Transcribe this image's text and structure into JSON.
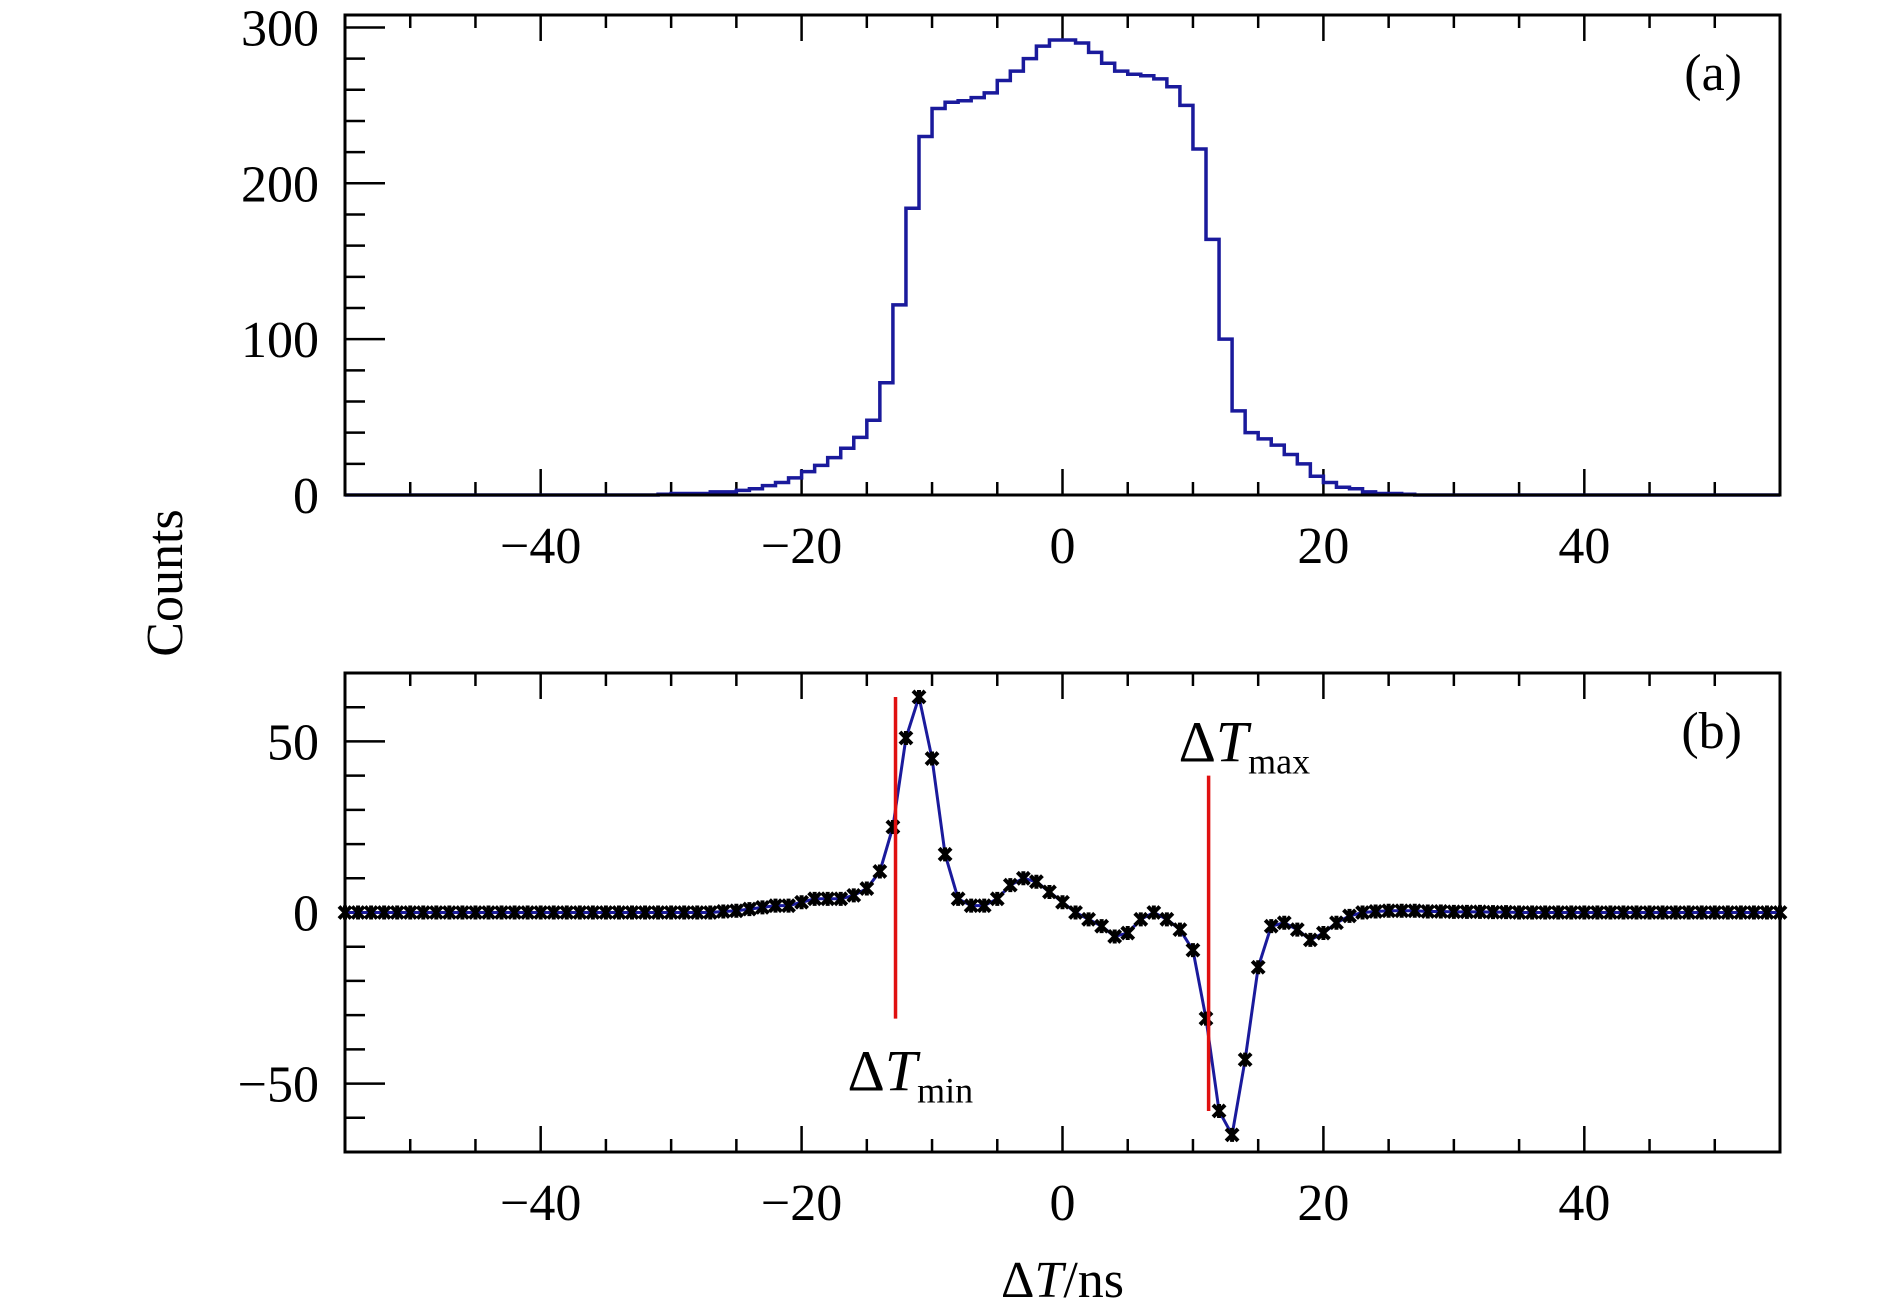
{
  "figure": {
    "ylabel": "Counts"
  },
  "colors": {
    "histogram": "#1a1a9c",
    "fit_curve": "#1a1a9c",
    "markers": "#000000",
    "marker_lines": "#e01010",
    "axes": "#000000"
  },
  "chart_data": [
    {
      "type": "bar",
      "style": "step-histogram",
      "panel_label": "(a)",
      "xlabel": "",
      "ylabel": "Counts",
      "xlim": [
        -55,
        55
      ],
      "ylim": [
        0,
        308
      ],
      "x_ticks": [
        -40,
        -20,
        0,
        20,
        40
      ],
      "x_tick_labels": [
        "−40",
        "−20",
        "0",
        "20",
        "40"
      ],
      "y_ticks": [
        0,
        100,
        200,
        300
      ],
      "y_tick_labels": [
        "0",
        "100",
        "200",
        "300"
      ],
      "bin_width": 1,
      "bin_start": -55,
      "values": [
        0,
        0,
        0,
        0,
        0,
        0,
        0,
        0,
        0,
        0,
        0,
        0,
        0,
        0,
        0,
        0,
        0,
        0,
        0,
        0,
        0,
        0,
        0,
        0,
        0.5,
        1,
        1,
        1,
        2,
        2,
        3,
        4,
        6,
        8,
        11,
        15,
        19,
        24,
        30,
        37,
        48,
        72,
        122,
        184,
        230,
        248,
        252,
        253,
        255,
        258,
        266,
        272,
        280,
        288,
        292,
        292,
        290,
        284,
        277,
        272,
        270,
        269,
        267,
        262,
        250,
        222,
        164,
        100,
        54,
        40,
        36,
        32,
        26,
        20,
        12,
        8,
        5,
        4,
        2,
        1,
        1,
        0.5,
        0,
        0,
        0,
        0,
        0,
        0,
        0,
        0,
        0,
        0,
        0,
        0,
        0,
        0,
        0,
        0,
        0,
        0,
        0,
        0,
        0,
        0,
        0,
        0,
        0,
        0,
        0,
        0
      ],
      "grid": false,
      "legend": "none"
    },
    {
      "type": "line",
      "style": "markers-with-fit",
      "panel_label": "(b)",
      "xlabel": "ΔT/ns",
      "ylabel": "Counts",
      "xlim": [
        -55,
        55
      ],
      "ylim": [
        -70,
        70
      ],
      "x_ticks": [
        -40,
        -20,
        0,
        20,
        40
      ],
      "x_tick_labels": [
        "−40",
        "−20",
        "0",
        "20",
        "40"
      ],
      "y_ticks": [
        -50,
        0,
        50
      ],
      "y_tick_labels": [
        "−50",
        "0",
        "50"
      ],
      "series": [
        {
          "x": [
            -55,
            -54,
            -53,
            -52,
            -51,
            -50,
            -49,
            -48,
            -47,
            -46,
            -45,
            -44,
            -43,
            -42,
            -41,
            -40,
            -39,
            -38,
            -37,
            -36,
            -35,
            -34,
            -33,
            -32,
            -31,
            -30,
            -29,
            -28,
            -27,
            -26,
            -25,
            -24,
            -23,
            -22,
            -21,
            -20,
            -19,
            -18,
            -17,
            -16,
            -15,
            -14,
            -13,
            -12,
            -11,
            -10,
            -9,
            -8,
            -7,
            -6,
            -5,
            -4,
            -3,
            -2,
            -1,
            0,
            1,
            2,
            3,
            4,
            5,
            6,
            7,
            8,
            9,
            10,
            11,
            12,
            13,
            14,
            15,
            16,
            17,
            18,
            19,
            20,
            21,
            22,
            23,
            24,
            25,
            26,
            27,
            28,
            29,
            30,
            31,
            32,
            33,
            34,
            35,
            36,
            37,
            38,
            39,
            40,
            41,
            42,
            43,
            44,
            45,
            46,
            47,
            48,
            49,
            50,
            51,
            52,
            53,
            54,
            55
          ],
          "y": [
            0,
            0,
            0,
            0,
            0,
            0,
            0,
            0,
            0,
            0,
            0,
            0,
            0,
            0,
            0,
            0,
            0,
            0,
            0,
            0,
            0,
            0,
            0,
            0,
            0,
            0,
            0,
            0,
            0,
            0.3,
            0.5,
            1,
            1.5,
            2,
            2,
            3,
            4,
            4,
            4,
            5,
            7,
            12,
            25,
            51,
            63,
            45,
            17,
            4,
            2,
            2,
            4,
            8,
            10,
            9,
            6,
            3,
            0,
            -2,
            -4,
            -7,
            -6,
            -2,
            0,
            -2,
            -5,
            -11,
            -31,
            -58,
            -65,
            -43,
            -16,
            -4,
            -3,
            -5,
            -8,
            -6,
            -3,
            -1,
            0,
            0.3,
            0.5,
            0.5,
            0.5,
            0.3,
            0.3,
            0.2,
            0.2,
            0.2,
            0.1,
            0.1,
            0,
            0,
            0,
            0,
            0,
            0,
            0,
            0,
            0,
            0,
            0,
            0,
            0,
            0,
            0,
            0,
            0,
            0,
            0,
            0,
            0
          ]
        }
      ],
      "annotations": [
        {
          "symbol": "ΔT",
          "subscript": "min",
          "x": -12.8,
          "y_from": 63,
          "y_to": -31
        },
        {
          "symbol": "ΔT",
          "subscript": "max",
          "x": 11.2,
          "y_from": -58,
          "y_to": 40
        }
      ],
      "grid": false,
      "legend": "none"
    }
  ]
}
